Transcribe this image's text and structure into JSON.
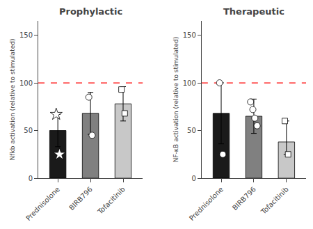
{
  "chart_data": [
    {
      "type": "bar",
      "title": "Prophylactic",
      "y_label": "Nfkb activation (relative to stimulated)",
      "categories": [
        "Prednisolone",
        "BIRB796",
        "Tofacitinib"
      ],
      "values": [
        50,
        68,
        78
      ],
      "error_plus": [
        17,
        22,
        18
      ],
      "error_minus": [
        17,
        22,
        18
      ],
      "colors": [
        "#1a1a1a",
        "#808080",
        "#c8c8c8"
      ],
      "points": [
        {
          "values": [
            67,
            25
          ],
          "marker": "star"
        },
        {
          "values": [
            85,
            45
          ],
          "marker": "circle"
        },
        {
          "values": [
            93,
            68
          ],
          "marker": "square"
        }
      ],
      "reference_line": {
        "y": 100,
        "color": "#ff0000",
        "line_style": "dashed"
      },
      "ylim": [
        0,
        165
      ],
      "yticks": [
        0,
        50,
        100,
        150
      ],
      "grid": false
    },
    {
      "type": "bar",
      "title": "Therapeutic",
      "y_label": "NF-κB activation (relative to stimulated)",
      "categories": [
        "Prednisolone",
        "BIRB796",
        "Tofacitinib"
      ],
      "values": [
        68,
        65,
        38
      ],
      "error_plus": [
        32,
        18,
        22
      ],
      "error_minus": [
        32,
        18,
        13
      ],
      "colors": [
        "#1a1a1a",
        "#808080",
        "#c8c8c8"
      ],
      "points": [
        {
          "values": [
            100,
            25
          ],
          "marker": "circle"
        },
        {
          "values": [
            80,
            72,
            63,
            55
          ],
          "marker": "circle"
        },
        {
          "values": [
            60,
            25
          ],
          "marker": "square"
        }
      ],
      "reference_line": {
        "y": 100,
        "color": "#ff0000",
        "line_style": "dashed"
      },
      "ylim": [
        0,
        165
      ],
      "yticks": [
        0,
        50,
        100,
        150
      ],
      "grid": false
    }
  ]
}
